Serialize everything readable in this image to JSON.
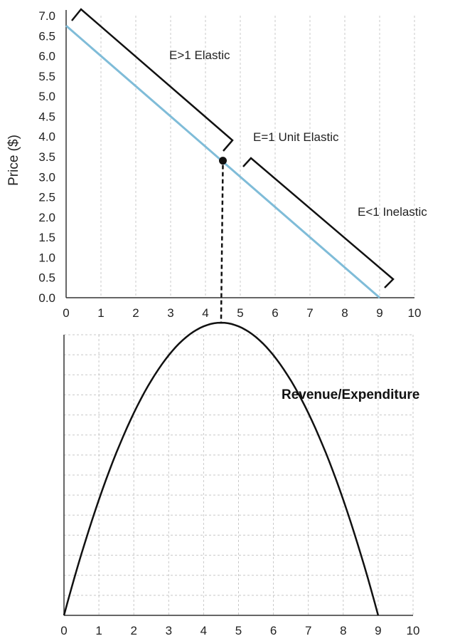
{
  "chart_data": [
    {
      "type": "line",
      "title": "",
      "xlabel": "",
      "ylabel": "Price ($)",
      "xlim": [
        0,
        10
      ],
      "ylim": [
        0,
        7
      ],
      "x_ticks": [
        "0",
        "1",
        "2",
        "3",
        "4",
        "5",
        "6",
        "7",
        "8",
        "9",
        "10"
      ],
      "y_ticks": [
        "0.0",
        "0.5",
        "1.0",
        "1.5",
        "2.0",
        "2.5",
        "3.0",
        "3.5",
        "4.0",
        "4.5",
        "5.0",
        "5.5",
        "6.0",
        "6.5",
        "7.0"
      ],
      "grid": "vertical dashed",
      "series": [
        {
          "x": [
            0,
            9
          ],
          "y": [
            6.75,
            0
          ],
          "color": "#7fbcd8"
        }
      ],
      "marker": {
        "x": 4.5,
        "y": 3.4
      },
      "annotations": [
        {
          "text": "E>1 Elastic"
        },
        {
          "text": "E=1 Unit Elastic"
        },
        {
          "text": "E<1 Inelastic"
        }
      ]
    },
    {
      "type": "line",
      "title": "Revenue/Expenditure",
      "xlabel": "",
      "ylabel": "",
      "xlim": [
        0,
        10
      ],
      "ylim": [
        0,
        14
      ],
      "x_ticks": [
        "0",
        "1",
        "2",
        "3",
        "4",
        "5",
        "6",
        "7",
        "8",
        "9",
        "10"
      ],
      "grid": "dashed",
      "series": [
        {
          "x": [
            0,
            1,
            2,
            3,
            4,
            4.5,
            5,
            6,
            7,
            8,
            9
          ],
          "y": [
            0,
            5.4,
            9.6,
            12.6,
            14.4,
            14.6,
            14.4,
            12.6,
            9.6,
            5.4,
            0
          ],
          "color": "#111111"
        }
      ],
      "peak_x": 4.5
    }
  ]
}
